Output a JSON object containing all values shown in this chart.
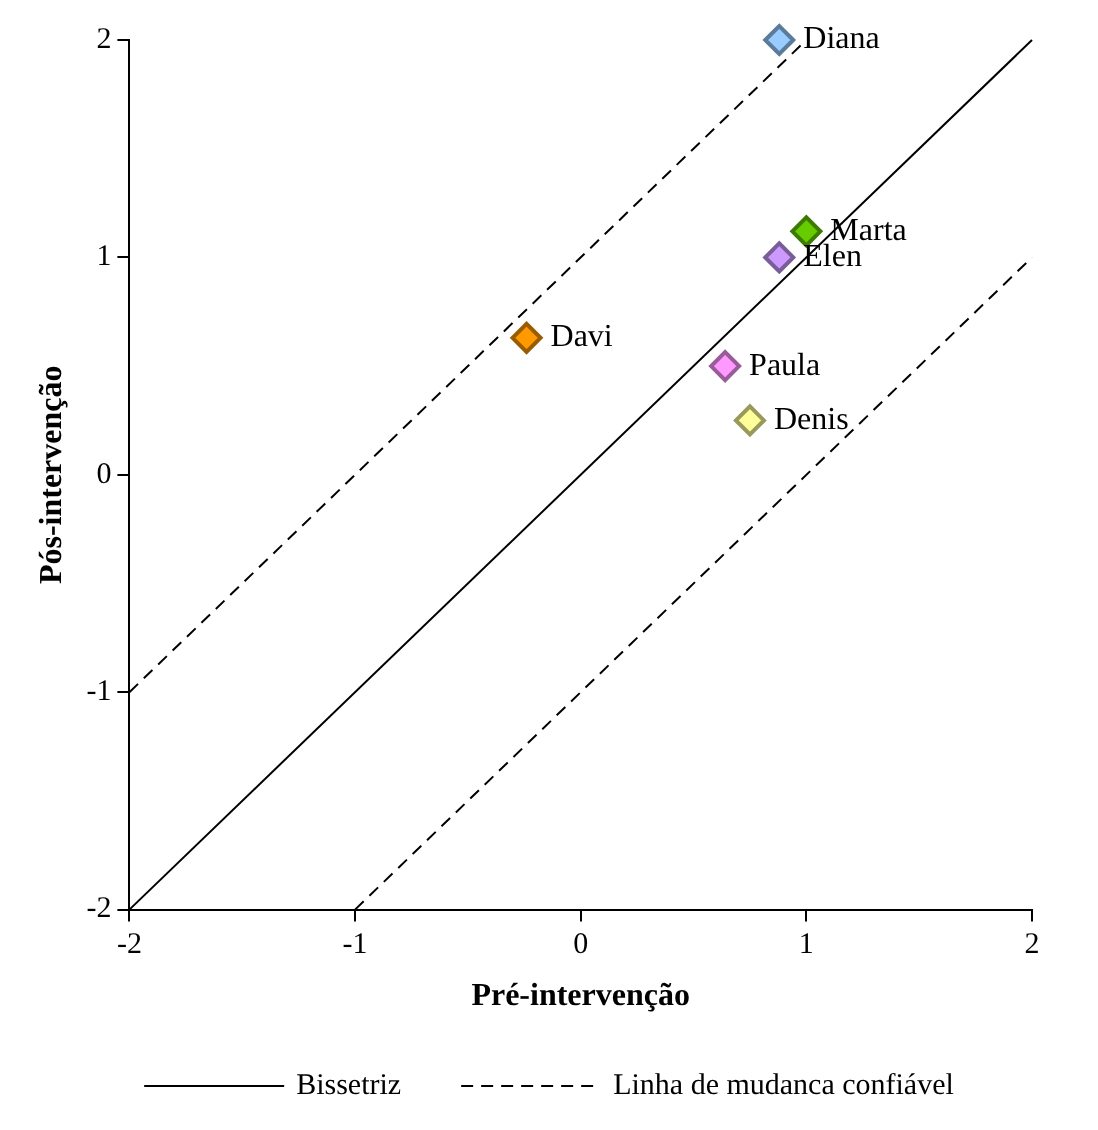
{
  "chart_data": {
    "type": "scatter",
    "xlabel": "Pré-intervenção",
    "ylabel": "Pós-intervenção",
    "xlim": [
      -2,
      2
    ],
    "ylim": [
      -2,
      2
    ],
    "xticks": [
      -2,
      -1,
      0,
      1,
      2
    ],
    "yticks": [
      -2,
      -1,
      0,
      1,
      2
    ],
    "grid": false,
    "legend": "bottom",
    "marker": "diamond",
    "series": [
      {
        "x": [
          0.88,
          1.0,
          0.88,
          -0.24,
          0.64,
          0.75
        ],
        "values": [
          2.0,
          1.12,
          1.0,
          0.63,
          0.5,
          0.25
        ],
        "colors": [
          "#99ccff",
          "#66cc00",
          "#cc99ff",
          "#ff9900",
          "#ff99ff",
          "#ffff99"
        ]
      },
      {
        "type": "line",
        "name": "Bissetriz",
        "color": "#000000",
        "line_style": "solid",
        "marker": "none",
        "x": [
          -2,
          2
        ],
        "values": [
          -2,
          2
        ]
      },
      {
        "type": "line",
        "name": "Linha de mudanca confiável",
        "color": "#000000",
        "line_style": "dashed",
        "marker": "none",
        "x": [
          -2,
          1
        ],
        "values": [
          -1,
          2
        ]
      },
      {
        "type": "line",
        "color": "#000000",
        "line_style": "dashed",
        "marker": "none",
        "x": [
          -1,
          2
        ],
        "values": [
          -2,
          1
        ]
      }
    ],
    "annotations": [
      {
        "text": "Diana",
        "x": 0.88,
        "y": 2.0
      },
      {
        "text": "Marta",
        "x": 1.0,
        "y": 1.12
      },
      {
        "text": "Elen",
        "x": 0.88,
        "y": 1.0
      },
      {
        "text": "Davi",
        "x": -0.24,
        "y": 0.63
      },
      {
        "text": "Paula",
        "x": 0.64,
        "y": 0.5
      },
      {
        "text": "Denis",
        "x": 0.75,
        "y": 0.25
      }
    ]
  }
}
